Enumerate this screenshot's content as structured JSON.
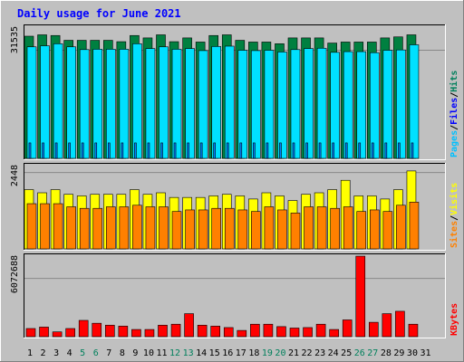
{
  "title": "Daily usage for June 2021",
  "colors": {
    "page_bg": "#C0C0C0",
    "plot_bg": "#C0C0C0",
    "title": "#0000FF",
    "hits": "#008040",
    "files": "#0080FF",
    "pages": "#00E0FF",
    "visits": "#FFFF00",
    "sites": "#FF8000",
    "kbytes": "#FF0000",
    "weekend_day": "#00805C",
    "weekday": "#000000"
  },
  "chart_data": [
    {
      "type": "bar",
      "name": "hits-files-pages",
      "ytick_label": "31535",
      "ymax": 38500,
      "ytick_value": 31535,
      "legend": [
        {
          "text": "Hits",
          "color": "#00805C"
        },
        {
          "text": "Files",
          "color": "#0000FF"
        },
        {
          "text": "Pages",
          "color": "#00C0FF"
        }
      ],
      "separator": "/",
      "categories": [
        1,
        2,
        3,
        4,
        5,
        6,
        7,
        8,
        9,
        10,
        11,
        12,
        13,
        14,
        15,
        16,
        17,
        18,
        19,
        20,
        21,
        22,
        23,
        24,
        25,
        26,
        27,
        28,
        29,
        30,
        31
      ],
      "series": [
        {
          "name": "Hits",
          "values": [
            35600,
            36000,
            35800,
            34400,
            34400,
            34400,
            34400,
            34000,
            35800,
            35100,
            36000,
            34000,
            35100,
            33900,
            35800,
            36000,
            34400,
            33900,
            33900,
            33400,
            35100,
            35100,
            35100,
            33600,
            33900,
            33900,
            33900,
            35100,
            35400,
            36000,
            null
          ]
        },
        {
          "name": "Files",
          "values": [
            4500,
            4500,
            4500,
            4500,
            4500,
            4500,
            4500,
            4500,
            4500,
            4500,
            4500,
            4500,
            4500,
            4500,
            4500,
            4500,
            4500,
            4500,
            4500,
            4500,
            4500,
            4500,
            4500,
            4500,
            4500,
            4500,
            4500,
            4500,
            4500,
            4500,
            null
          ]
        },
        {
          "name": "Pages",
          "values": [
            32500,
            32800,
            33400,
            32500,
            31700,
            31800,
            31800,
            31800,
            33400,
            32000,
            32500,
            31800,
            32000,
            31400,
            32600,
            32700,
            31500,
            31400,
            31500,
            31000,
            31700,
            32000,
            32100,
            30900,
            31100,
            31100,
            30800,
            31500,
            31600,
            33100,
            null
          ]
        }
      ]
    },
    {
      "type": "bar",
      "name": "visits-sites",
      "ytick_label": "2448",
      "ymax": 2700,
      "ytick_value": 2448,
      "legend": [
        {
          "text": "Visits",
          "color": "#FFFF00"
        },
        {
          "text": "Sites",
          "color": "#FF8000"
        }
      ],
      "separator": "/",
      "categories": [
        1,
        2,
        3,
        4,
        5,
        6,
        7,
        8,
        9,
        10,
        11,
        12,
        13,
        14,
        15,
        16,
        17,
        18,
        19,
        20,
        21,
        22,
        23,
        24,
        25,
        26,
        27,
        28,
        29,
        30,
        31
      ],
      "series": [
        {
          "name": "Visits",
          "values": [
            1900,
            1800,
            1900,
            1750,
            1700,
            1750,
            1750,
            1750,
            1900,
            1750,
            1800,
            1650,
            1650,
            1650,
            1700,
            1750,
            1700,
            1600,
            1800,
            1700,
            1550,
            1750,
            1800,
            1900,
            2200,
            1700,
            1700,
            1600,
            1900,
            2500,
            null
          ]
        },
        {
          "name": "Sites",
          "values": [
            1450,
            1450,
            1450,
            1350,
            1300,
            1300,
            1350,
            1350,
            1400,
            1350,
            1350,
            1200,
            1250,
            1250,
            1300,
            1300,
            1250,
            1200,
            1350,
            1250,
            1150,
            1350,
            1350,
            1300,
            1350,
            1200,
            1250,
            1200,
            1400,
            1500,
            null
          ]
        }
      ]
    },
    {
      "type": "bar",
      "name": "kbytes",
      "ytick_label": "6072688",
      "ymax": 8500000,
      "ytick_value": 6072688,
      "legend": [
        {
          "text": "KBytes",
          "color": "#FF0000"
        }
      ],
      "separator": "/",
      "categories": [
        1,
        2,
        3,
        4,
        5,
        6,
        7,
        8,
        9,
        10,
        11,
        12,
        13,
        14,
        15,
        16,
        17,
        18,
        19,
        20,
        21,
        22,
        23,
        24,
        25,
        26,
        27,
        28,
        29,
        30,
        31
      ],
      "series": [
        {
          "name": "KBytes",
          "values": [
            850000,
            1000000,
            500000,
            850000,
            1700000,
            1400000,
            1200000,
            1100000,
            750000,
            750000,
            1200000,
            1300000,
            2400000,
            1200000,
            1100000,
            950000,
            650000,
            1300000,
            1300000,
            1050000,
            900000,
            950000,
            1300000,
            750000,
            1750000,
            8400000,
            1500000,
            2400000,
            2650000,
            1300000,
            null
          ]
        }
      ]
    }
  ],
  "x_labels": [
    {
      "text": "1",
      "weekend": false
    },
    {
      "text": "2",
      "weekend": false
    },
    {
      "text": "3",
      "weekend": false
    },
    {
      "text": "4",
      "weekend": false
    },
    {
      "text": "5",
      "weekend": true
    },
    {
      "text": "6",
      "weekend": true
    },
    {
      "text": "7",
      "weekend": false
    },
    {
      "text": "8",
      "weekend": false
    },
    {
      "text": "9",
      "weekend": false
    },
    {
      "text": "10",
      "weekend": false
    },
    {
      "text": "11",
      "weekend": false
    },
    {
      "text": "12",
      "weekend": true
    },
    {
      "text": "13",
      "weekend": true
    },
    {
      "text": "14",
      "weekend": false
    },
    {
      "text": "15",
      "weekend": false
    },
    {
      "text": "16",
      "weekend": false
    },
    {
      "text": "17",
      "weekend": false
    },
    {
      "text": "18",
      "weekend": false
    },
    {
      "text": "19",
      "weekend": true
    },
    {
      "text": "20",
      "weekend": true
    },
    {
      "text": "21",
      "weekend": false
    },
    {
      "text": "22",
      "weekend": false
    },
    {
      "text": "23",
      "weekend": false
    },
    {
      "text": "24",
      "weekend": false
    },
    {
      "text": "25",
      "weekend": false
    },
    {
      "text": "26",
      "weekend": true
    },
    {
      "text": "27",
      "weekend": true
    },
    {
      "text": "28",
      "weekend": false
    },
    {
      "text": "29",
      "weekend": false
    },
    {
      "text": "30",
      "weekend": false
    },
    {
      "text": "31",
      "weekend": false
    }
  ]
}
